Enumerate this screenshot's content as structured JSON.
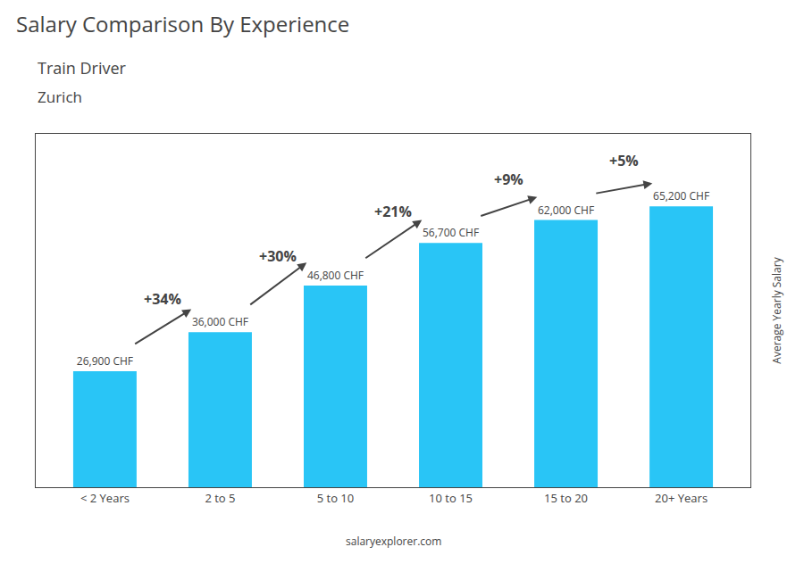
{
  "chart_data": {
    "type": "bar",
    "title": "Salary Comparison By Experience",
    "subtitle": "Train Driver",
    "location": "Zurich",
    "ylabel": "Average Yearly Salary",
    "watermark": "salaryexplorer.com",
    "categories": [
      "< 2 Years",
      "2 to 5",
      "5 to 10",
      "10 to 15",
      "15 to 20",
      "20+ Years"
    ],
    "values": [
      26900,
      36000,
      46800,
      56700,
      62000,
      65200
    ],
    "value_labels": [
      "26,900 CHF",
      "36,000 CHF",
      "46,800 CHF",
      "56,700 CHF",
      "62,000 CHF",
      "65,200 CHF"
    ],
    "data_labels": true,
    "annotations": [
      "+34%",
      "+30%",
      "+21%",
      "+9%",
      "+5%"
    ],
    "color": "#29c5f6",
    "ylim": [
      0,
      82000
    ],
    "grid": false,
    "tick_labels": "x"
  }
}
